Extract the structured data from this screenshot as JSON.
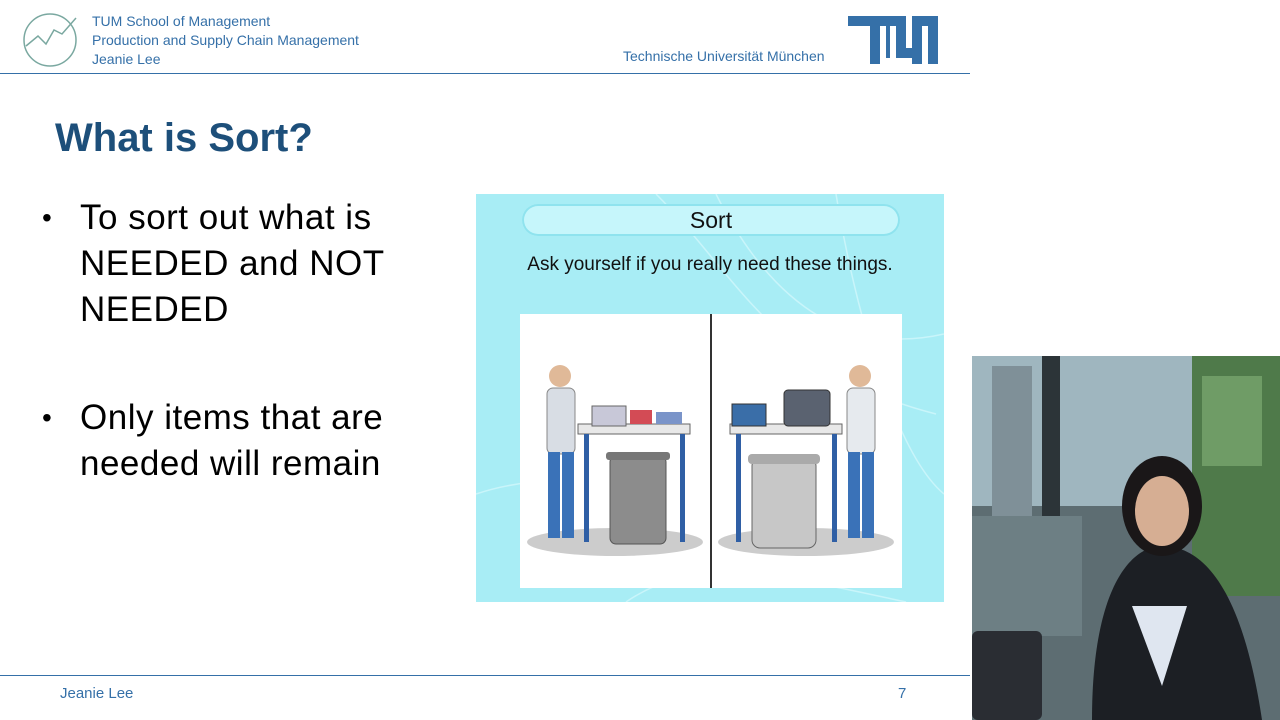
{
  "header": {
    "school_lines": [
      "TUM School of Management",
      "Production and Supply Chain Management",
      "Jeanie Lee"
    ],
    "university": "Technische Universität München",
    "logo_icon": "tum-logo-icon",
    "emblem_icon": "chart-circle-icon"
  },
  "slide": {
    "title": "What is Sort?",
    "bullets": [
      "To sort out what is NEEDED and NOT NEEDED",
      "Only items that are needed will remain"
    ],
    "figure": {
      "heading": "Sort",
      "subtitle": "Ask yourself if you really need these things."
    }
  },
  "footer": {
    "presenter": "Jeanie Lee",
    "page_number": "7"
  },
  "colors": {
    "brand_blue": "#3570a8",
    "title_blue": "#1d4f7a",
    "panel_cyan": "#a8edf5"
  }
}
